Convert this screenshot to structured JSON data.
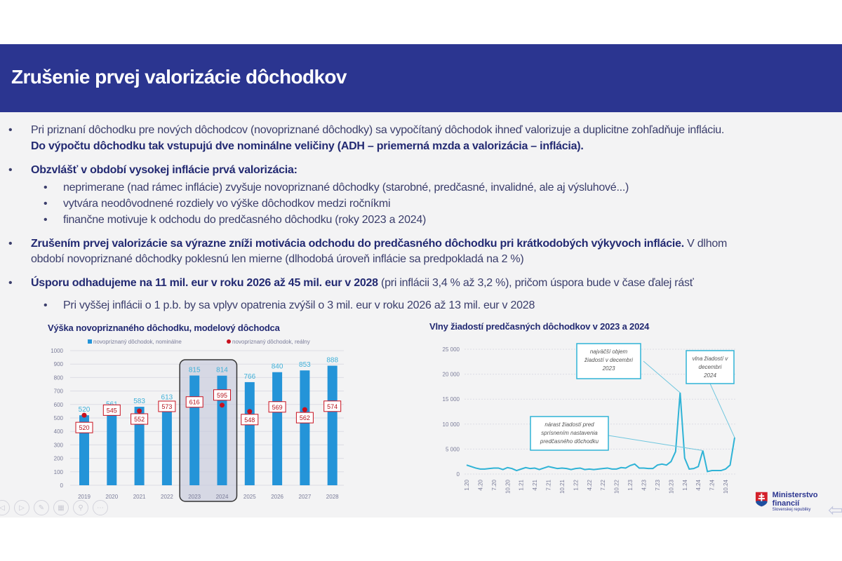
{
  "header": {
    "title": "Zrušenie prvej valorizácie dôchodkov"
  },
  "bullets": {
    "b1_l1": "Pri priznaní dôchodku pre nových dôchodcov (novopriznané dôchodky) sa vypočítaný dôchodok ihneď valorizuje a duplicitne zohľadňuje infláciu.",
    "b1_l2": "Do výpočtu dôchodku tak vstupujú dve nominálne veličiny (ADH – priemerná mzda a valorizácia – inflácia).",
    "b2": "Obzvlášť v období vysokej inflácie prvá valorizácia:",
    "b2_s1": "neprimerane (nad rámec inflácie)  zvyšuje novopriznané dôchodky (starobné, predčasné, invalidné, ale aj výsluhové...)",
    "b2_s2": "vytvára neodôvodnené rozdiely vo výške dôchodkov medzi ročníkmi",
    "b2_s3": "finančne motivuje k odchodu do predčasného dôchodku (roky 2023 a 2024)",
    "b3_bold": "Zrušením prvej valorizácie sa výrazne zníži motivácia odchodu do predčasného dôchodku pri krátkodobých výkyvoch inflácie.",
    "b3_rest": " V dlhom",
    "b3_l2": "období novopriznané dôchodky poklesnú len mierne (dlhodobá úroveň inflácie sa predpokladá na 2 %)",
    "b4_bold": "Úsporu odhadujeme na 11 mil. eur v roku 2026 až 45 mil. eur v 2028",
    "b4_rest": " (pri inflácii 3,4 % až 3,2 %), pričom úspora bude v čase ďalej rásť",
    "b4_s1": "Pri vyššej inflácii o 1 p.b. by sa vplyv opatrenia zvýšil o 3 mil. eur v roku 2026 až 13 mil. eur v 2028",
    "bullet": "•"
  },
  "colors": {
    "header": "#2b3590",
    "bar": "#2494d8",
    "real": "#c8101e",
    "line": "#2fb3d6"
  },
  "chart_data": [
    {
      "type": "bar",
      "title": "Výška novopriznaného dôchodku, modelový dôchodca",
      "categories": [
        "2019",
        "2020",
        "2021",
        "2022",
        "2023",
        "2024",
        "2025",
        "2026",
        "2027",
        "2028"
      ],
      "series": [
        {
          "name": "novopriznaný dôchodok, nominálne",
          "values": [
            520,
            561,
            583,
            613,
            815,
            814,
            766,
            840,
            853,
            888
          ]
        },
        {
          "name": "novopriznaný dôchodok, reálny",
          "values": [
            520,
            545,
            552,
            573,
            616,
            595,
            548,
            569,
            562,
            574
          ]
        }
      ],
      "ylim": [
        0,
        1000
      ],
      "yticks": [
        0,
        100,
        200,
        300,
        400,
        500,
        600,
        700,
        800,
        900,
        1000
      ],
      "highlight": [
        "2023",
        "2024"
      ],
      "legend": "top",
      "grid": true
    },
    {
      "type": "line",
      "title": "Vlny žiadostí predčasných dôchodkov v 2023 a 2024",
      "x_labels": [
        "1.20",
        "4.20",
        "7.20",
        "10.20",
        "1.21",
        "4.21",
        "7.21",
        "10.21",
        "1.22",
        "4.22",
        "7.22",
        "10.22",
        "1.23",
        "4.23",
        "7.23",
        "10.23",
        "1.24",
        "4.24",
        "7.24",
        "10.24"
      ],
      "values": [
        1800,
        1500,
        1200,
        1000,
        1000,
        1100,
        1200,
        1200,
        900,
        1300,
        1100,
        700,
        1000,
        1300,
        1100,
        1200,
        900,
        1200,
        1500,
        1300,
        1100,
        1200,
        1100,
        900,
        1100,
        1200,
        900,
        1000,
        900,
        1000,
        1100,
        1200,
        1000,
        1000,
        1300,
        1200,
        1700,
        2000,
        1200,
        1200,
        1100,
        1100,
        1800,
        2000,
        1800,
        2500,
        4500,
        16300,
        3200,
        1000,
        1100,
        1500,
        4700,
        500,
        700,
        700,
        700,
        1000,
        1800,
        7300
      ],
      "ylim": [
        0,
        25000
      ],
      "yticks": [
        "0",
        "5 000",
        "10 000",
        "15 000",
        "20 000",
        "25 000"
      ],
      "grid": true,
      "annotations": [
        "najväčší objem žiadostí  v decembri 2023",
        "vlna žiadostí v decembri 2024",
        "nárast žiadostí pred sprísnením nastavenia predčasného dôchodku"
      ]
    }
  ],
  "logo": {
    "name": "Ministerstvo financií",
    "sub": "Slovenskej republiky"
  },
  "controls": [
    "prev",
    "next",
    "pen",
    "slides",
    "zoom",
    "more"
  ]
}
